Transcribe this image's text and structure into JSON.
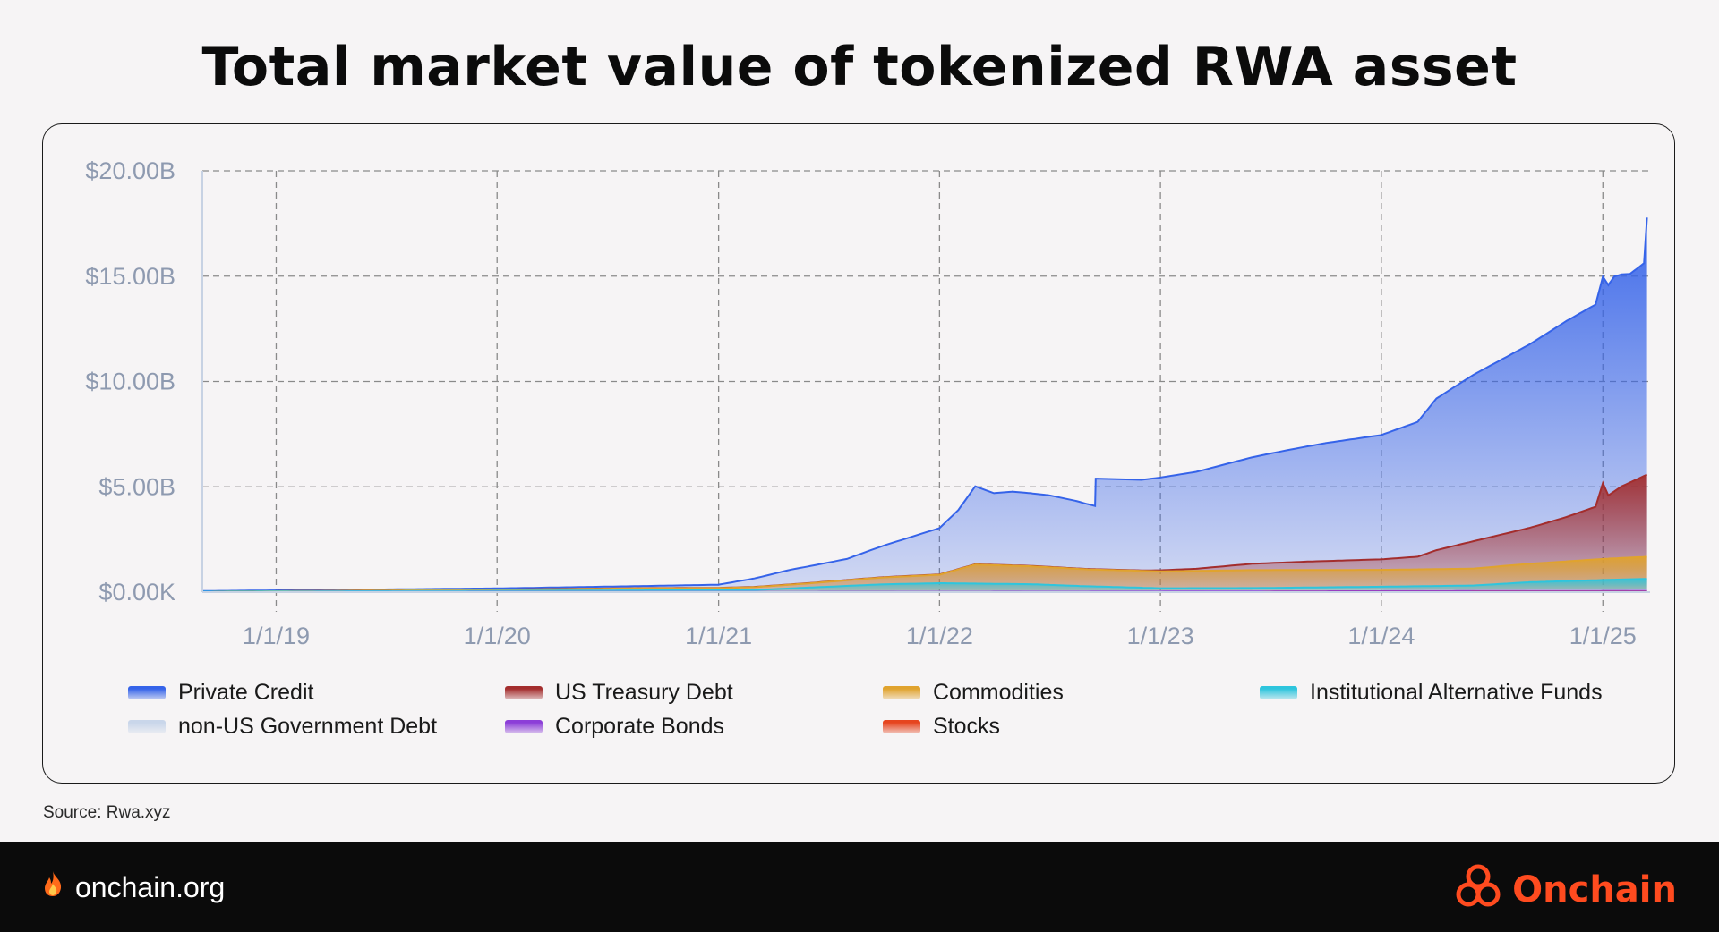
{
  "header": {
    "title": "Total market value of tokenized RWA asset"
  },
  "source": "Source: Rwa.xyz",
  "footer": {
    "site": "onchain.org",
    "site_icon": "flame-icon",
    "brand": "Onchain",
    "brand_icon": "onchain-logo-icon",
    "brand_color": "#ff4b1f",
    "background": "#0b0b0b"
  },
  "chart_data": {
    "type": "area",
    "stacked": true,
    "title": "Total market value of tokenized RWA asset",
    "xlabel": "",
    "ylabel": "",
    "x_ticks": [
      "1/1/19",
      "1/1/20",
      "1/1/21",
      "1/1/22",
      "1/1/23",
      "1/1/24",
      "1/1/25"
    ],
    "y_ticks": [
      "$0.00K",
      "$5.00B",
      "$10.00B",
      "$15.00B",
      "$20.00B"
    ],
    "ylim": [
      0,
      20
    ],
    "y_unit": "billions USD",
    "xlim": [
      "2018-09-01",
      "2025-03-20"
    ],
    "grid": true,
    "legend_position": "bottom",
    "series": [
      {
        "name": "Private Credit",
        "color": "#3563e9",
        "points": [
          [
            "2018-09-01",
            0.03
          ],
          [
            "2020-01-01",
            0.06
          ],
          [
            "2020-09-01",
            0.1
          ],
          [
            "2021-01-01",
            0.15
          ],
          [
            "2021-03-01",
            0.4
          ],
          [
            "2021-05-01",
            0.7
          ],
          [
            "2021-08-01",
            1.0
          ],
          [
            "2021-10-01",
            1.5
          ],
          [
            "2022-01-01",
            2.2
          ],
          [
            "2022-02-01",
            2.8
          ],
          [
            "2022-03-01",
            3.7
          ],
          [
            "2022-04-01",
            3.4
          ],
          [
            "2022-05-01",
            3.5
          ],
          [
            "2022-07-01",
            3.4
          ],
          [
            "2022-08-15",
            3.2
          ],
          [
            "2022-09-15",
            3.0
          ],
          [
            "2022-09-16",
            4.3
          ],
          [
            "2022-12-01",
            4.3
          ],
          [
            "2023-03-01",
            4.6
          ],
          [
            "2023-07-01",
            5.2
          ],
          [
            "2023-10-01",
            5.6
          ],
          [
            "2024-01-01",
            5.9
          ],
          [
            "2024-03-01",
            6.4
          ],
          [
            "2024-04-01",
            7.2
          ],
          [
            "2024-06-01",
            7.9
          ],
          [
            "2024-09-01",
            8.7
          ],
          [
            "2024-11-01",
            9.3
          ],
          [
            "2024-12-20",
            9.6
          ],
          [
            "2025-01-01",
            9.8
          ],
          [
            "2025-01-20",
            10.2
          ],
          [
            "2025-02-15",
            9.9
          ],
          [
            "2025-03-10",
            10.1
          ],
          [
            "2025-03-15",
            12.2
          ]
        ]
      },
      {
        "name": "US Treasury Debt",
        "color": "#a32d2d",
        "points": [
          [
            "2018-09-01",
            0.0
          ],
          [
            "2022-12-01",
            0.02
          ],
          [
            "2023-01-01",
            0.05
          ],
          [
            "2023-03-01",
            0.1
          ],
          [
            "2023-06-01",
            0.3
          ],
          [
            "2023-09-01",
            0.4
          ],
          [
            "2024-01-01",
            0.5
          ],
          [
            "2024-03-01",
            0.6
          ],
          [
            "2024-04-01",
            0.9
          ],
          [
            "2024-06-01",
            1.3
          ],
          [
            "2024-09-01",
            1.7
          ],
          [
            "2024-11-01",
            2.1
          ],
          [
            "2024-12-20",
            2.5
          ],
          [
            "2025-01-01",
            3.6
          ],
          [
            "2025-01-10",
            3.0
          ],
          [
            "2025-02-01",
            3.4
          ],
          [
            "2025-03-15",
            3.9
          ]
        ]
      },
      {
        "name": "Commodities",
        "color": "#e0a32e",
        "points": [
          [
            "2018-09-01",
            0.0
          ],
          [
            "2020-01-01",
            0.05
          ],
          [
            "2020-09-01",
            0.1
          ],
          [
            "2021-01-01",
            0.1
          ],
          [
            "2021-06-01",
            0.2
          ],
          [
            "2021-09-01",
            0.3
          ],
          [
            "2022-01-01",
            0.4
          ],
          [
            "2022-03-01",
            0.9
          ],
          [
            "2022-06-01",
            0.85
          ],
          [
            "2022-09-01",
            0.8
          ],
          [
            "2023-01-01",
            0.8
          ],
          [
            "2023-06-01",
            0.85
          ],
          [
            "2024-01-01",
            0.8
          ],
          [
            "2024-06-01",
            0.8
          ],
          [
            "2024-10-01",
            0.9
          ],
          [
            "2025-01-01",
            1.0
          ],
          [
            "2025-03-15",
            1.05
          ]
        ]
      },
      {
        "name": "Institutional Alternative Funds",
        "color": "#2ec5dd",
        "points": [
          [
            "2018-09-01",
            0.02
          ],
          [
            "2021-03-01",
            0.08
          ],
          [
            "2021-06-01",
            0.2
          ],
          [
            "2021-10-01",
            0.35
          ],
          [
            "2022-01-01",
            0.4
          ],
          [
            "2022-06-01",
            0.35
          ],
          [
            "2022-09-01",
            0.25
          ],
          [
            "2023-01-01",
            0.15
          ],
          [
            "2023-06-01",
            0.15
          ],
          [
            "2024-01-01",
            0.2
          ],
          [
            "2024-06-01",
            0.25
          ],
          [
            "2024-09-01",
            0.4
          ],
          [
            "2025-01-01",
            0.5
          ],
          [
            "2025-03-15",
            0.55
          ]
        ]
      },
      {
        "name": "non-US Government Debt",
        "color": "#c9d6ea",
        "points": [
          [
            "2018-09-01",
            0.0
          ],
          [
            "2023-06-01",
            0.01
          ],
          [
            "2025-03-15",
            0.02
          ]
        ]
      },
      {
        "name": "Corporate Bonds",
        "color": "#8c3ed8",
        "points": [
          [
            "2018-09-01",
            0.0
          ],
          [
            "2022-06-01",
            0.02
          ],
          [
            "2024-01-01",
            0.04
          ],
          [
            "2025-03-15",
            0.05
          ]
        ]
      },
      {
        "name": "Stocks",
        "color": "#e6451f",
        "points": [
          [
            "2018-09-01",
            0.0
          ],
          [
            "2023-01-01",
            0.0
          ],
          [
            "2025-03-15",
            0.01
          ]
        ]
      }
    ],
    "stack_order_bottom_to_top": [
      "Stocks",
      "Corporate Bonds",
      "non-US Government Debt",
      "Institutional Alternative Funds",
      "Commodities",
      "US Treasury Debt",
      "Private Credit"
    ],
    "legend": [
      [
        "Private Credit",
        "US Treasury Debt",
        "Commodities",
        "Institutional Alternative Funds"
      ],
      [
        "non-US Government Debt",
        "Corporate Bonds",
        "Stocks"
      ]
    ]
  }
}
